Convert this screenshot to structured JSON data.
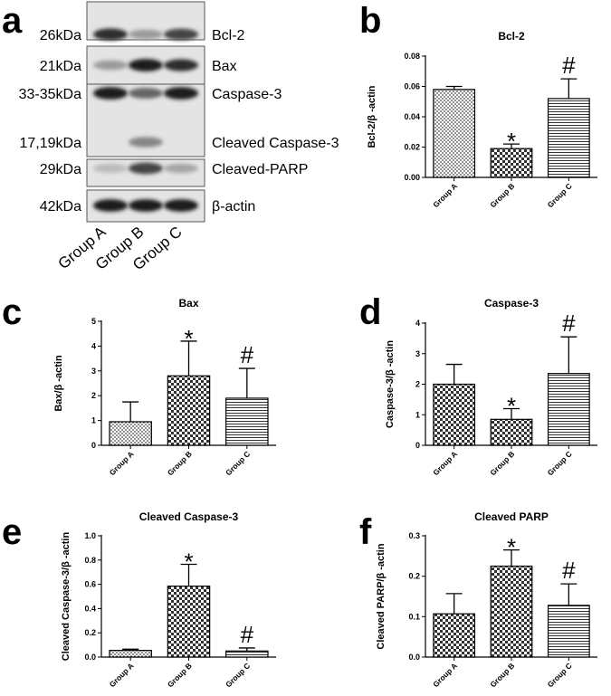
{
  "panel_letters": [
    "a",
    "b",
    "c",
    "d",
    "e",
    "f"
  ],
  "blot": {
    "rows": [
      {
        "mw": "26kDa",
        "protein": "Bcl-2",
        "intensity": [
          0.85,
          0.35,
          0.75
        ]
      },
      {
        "mw": "21kDa",
        "protein": "Bax",
        "intensity": [
          0.35,
          0.95,
          0.85
        ]
      },
      {
        "mw": "33-35kDa",
        "protein": "Caspase-3",
        "intensity": [
          0.95,
          0.6,
          0.95
        ]
      },
      {
        "mw": "17,19kDa",
        "protein": "Cleaved Caspase-3",
        "intensity": [
          0.05,
          0.45,
          0.05
        ]
      },
      {
        "mw": "29kDa",
        "protein": "Cleaved-PARP",
        "intensity": [
          0.2,
          0.75,
          0.3
        ]
      },
      {
        "mw": "42kDa",
        "protein": "β-actin",
        "intensity": [
          0.95,
          0.95,
          0.95
        ]
      }
    ],
    "lanes": [
      "Group A",
      "Group B",
      "Group C"
    ]
  },
  "chart_data": [
    {
      "panel": "b",
      "type": "bar",
      "title": "Bcl-2",
      "ylabel": "Bcl-2/β -actin",
      "categories": [
        "Group A",
        "Group B",
        "Group C"
      ],
      "values": [
        0.058,
        0.019,
        0.052
      ],
      "errors": [
        0.002,
        0.003,
        0.013
      ],
      "ylim": [
        0,
        0.08
      ],
      "yticks": [
        "0.00",
        "0.02",
        "0.04",
        "0.06",
        "0.08"
      ],
      "marks": [
        "",
        "*",
        "#"
      ],
      "patterns": [
        "dots",
        "check",
        "hlines"
      ]
    },
    {
      "panel": "c",
      "type": "bar",
      "title": "Bax",
      "ylabel": "Bax/β -actin",
      "categories": [
        "Group A",
        "Group B",
        "Group C"
      ],
      "values": [
        0.95,
        2.8,
        1.9
      ],
      "errors": [
        0.8,
        1.4,
        1.2
      ],
      "ylim": [
        0,
        5
      ],
      "yticks": [
        "0",
        "1",
        "2",
        "3",
        "4",
        "5"
      ],
      "marks": [
        "",
        "*",
        "#"
      ],
      "patterns": [
        "dots",
        "check",
        "hlines"
      ]
    },
    {
      "panel": "d",
      "type": "bar",
      "title": "Caspase-3",
      "ylabel": "Caspase-3/β -actin",
      "categories": [
        "Group A",
        "Group B",
        "Group C"
      ],
      "values": [
        2.0,
        0.85,
        2.35
      ],
      "errors": [
        0.65,
        0.35,
        1.2
      ],
      "ylim": [
        0,
        4
      ],
      "yticks": [
        "0",
        "1",
        "2",
        "3",
        "4"
      ],
      "marks": [
        "",
        "*",
        "#"
      ],
      "patterns": [
        "check",
        "check",
        "hlines"
      ]
    },
    {
      "panel": "e",
      "type": "bar",
      "title": "Cleaved Caspase-3",
      "ylabel": "Cleaved Caspase-3/β -actin",
      "categories": [
        "Group A",
        "Group B",
        "Group C"
      ],
      "values": [
        0.055,
        0.585,
        0.05
      ],
      "errors": [
        0.01,
        0.18,
        0.025
      ],
      "ylim": [
        0,
        1.0
      ],
      "yticks": [
        "0.0",
        "0.2",
        "0.4",
        "0.6",
        "0.8",
        "1.0"
      ],
      "marks": [
        "",
        "*",
        "#"
      ],
      "patterns": [
        "dots",
        "check",
        "hlines"
      ]
    },
    {
      "panel": "f",
      "type": "bar",
      "title": "Cleaved PARP",
      "ylabel": "Cleaved PARP/β -actin",
      "categories": [
        "Group A",
        "Group B",
        "Group C"
      ],
      "values": [
        0.107,
        0.225,
        0.128
      ],
      "errors": [
        0.05,
        0.04,
        0.053
      ],
      "ylim": [
        0,
        0.3
      ],
      "yticks": [
        "0.0",
        "0.1",
        "0.2",
        "0.3"
      ],
      "marks": [
        "",
        "*",
        "#"
      ],
      "patterns": [
        "check",
        "check",
        "hlines"
      ]
    }
  ]
}
